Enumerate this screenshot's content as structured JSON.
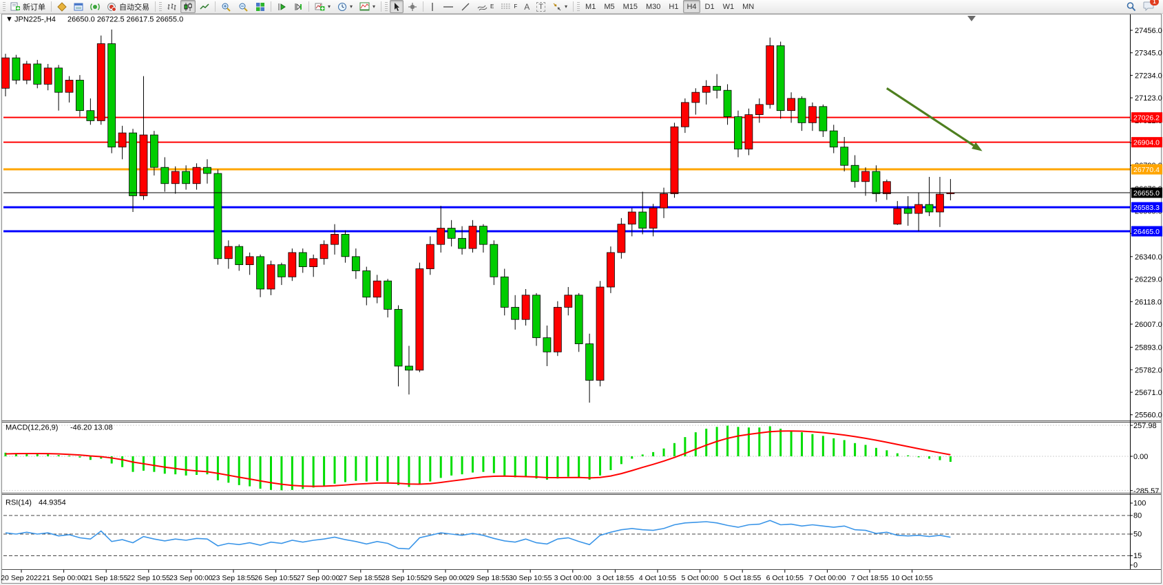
{
  "toolbar": {
    "new_order_label": "新订单",
    "autotrading_label": "自动交易",
    "text_tool_label": "A",
    "text_label_tool_label": "T",
    "channel_sub": "E",
    "fibo_sub": "F",
    "timeframes": [
      "M1",
      "M5",
      "M15",
      "M30",
      "H1",
      "H4",
      "D1",
      "W1",
      "MN"
    ],
    "active_timeframe": "H4",
    "notification_count": "1"
  },
  "chart": {
    "title_display": "JPN225-,H4",
    "symbol": "JPN225-",
    "period": "H4",
    "ohlc_display": "26650.0 26722.5 26617.5 26655.0",
    "open": "26650.0",
    "high": "26722.5",
    "low": "26617.5",
    "close": "26655.0"
  },
  "chart_data": [
    {
      "type": "candlestick",
      "title": "JPN225-,H4",
      "up_color": "#ff0000",
      "down_color": "#00cc00",
      "ylim": [
        25528,
        27490
      ],
      "y_tick_labels": [
        "27456.0",
        "27345.0",
        "27234.0",
        "27123.0",
        "27012.0",
        "26901.0",
        "26790.0",
        "26676.0",
        "26565.0",
        "26454.0",
        "26340.0",
        "26229.0",
        "26118.0",
        "26007.0",
        "25893.0",
        "25782.0",
        "25671.0",
        "25560.0"
      ],
      "x_labels": [
        "20 Sep 2022",
        "21 Sep 00:00",
        "21 Sep 18:55",
        "22 Sep 10:55",
        "23 Sep 00:00",
        "23 Sep 18:55",
        "26 Sep 10:55",
        "27 Sep 00:00",
        "27 Sep 18:55",
        "28 Sep 10:55",
        "29 Sep 00:00",
        "29 Sep 18:55",
        "30 Sep 10:55",
        "3 Oct 00:00",
        "3 Oct 18:55",
        "4 Oct 10:55",
        "5 Oct 00:00",
        "5 Oct 18:55",
        "6 Oct 10:55",
        "7 Oct 00:00",
        "7 Oct 18:55",
        "10 Oct 10:55"
      ],
      "candles_ohlc": [
        [
          27170,
          27340,
          27130,
          27320
        ],
        [
          27320,
          27335,
          27190,
          27210
        ],
        [
          27210,
          27305,
          27190,
          27290
        ],
        [
          27290,
          27310,
          27170,
          27190
        ],
        [
          27190,
          27290,
          27160,
          27270
        ],
        [
          27270,
          27285,
          27060,
          27150
        ],
        [
          27150,
          27230,
          27100,
          27210
        ],
        [
          27210,
          27235,
          27030,
          27060
        ],
        [
          27060,
          27120,
          26990,
          27010
        ],
        [
          27010,
          27430,
          26990,
          27390
        ],
        [
          27390,
          27460,
          26850,
          26880
        ],
        [
          26880,
          26985,
          26820,
          26950
        ],
        [
          26950,
          26970,
          26560,
          26640
        ],
        [
          26640,
          27230,
          26620,
          26940
        ],
        [
          26940,
          26960,
          26740,
          26780
        ],
        [
          26780,
          26830,
          26660,
          26700
        ],
        [
          26700,
          26785,
          26650,
          26760
        ],
        [
          26760,
          26790,
          26670,
          26700
        ],
        [
          26700,
          26800,
          26670,
          26780
        ],
        [
          26780,
          26820,
          26700,
          26750
        ],
        [
          26750,
          26770,
          26300,
          26330
        ],
        [
          26330,
          26420,
          26280,
          26390
        ],
        [
          26390,
          26400,
          26270,
          26300
        ],
        [
          26300,
          26360,
          26250,
          26340
        ],
        [
          26340,
          26350,
          26140,
          26180
        ],
        [
          26180,
          26320,
          26150,
          26300
        ],
        [
          26300,
          26310,
          26200,
          26240
        ],
        [
          26240,
          26380,
          26220,
          26360
        ],
        [
          26360,
          26380,
          26260,
          26290
        ],
        [
          26290,
          26350,
          26240,
          26330
        ],
        [
          26330,
          26420,
          26300,
          26400
        ],
        [
          26400,
          26500,
          26350,
          26450
        ],
        [
          26450,
          26470,
          26310,
          26340
        ],
        [
          26340,
          26380,
          26230,
          26270
        ],
        [
          26270,
          26290,
          26100,
          26140
        ],
        [
          26140,
          26250,
          26110,
          26220
        ],
        [
          26220,
          26230,
          26040,
          26080
        ],
        [
          26080,
          26100,
          25700,
          25800
        ],
        [
          25800,
          25900,
          25660,
          25780
        ],
        [
          25780,
          26310,
          25770,
          26280
        ],
        [
          26280,
          26440,
          26250,
          26400
        ],
        [
          26400,
          26590,
          26360,
          26480
        ],
        [
          26480,
          26520,
          26390,
          26430
        ],
        [
          26430,
          26490,
          26350,
          26380
        ],
        [
          26380,
          26520,
          26360,
          26490
        ],
        [
          26490,
          26500,
          26360,
          26400
        ],
        [
          26400,
          26420,
          26200,
          26240
        ],
        [
          26240,
          26280,
          26050,
          26090
        ],
        [
          26090,
          26150,
          25980,
          26030
        ],
        [
          26030,
          26180,
          26000,
          26150
        ],
        [
          26150,
          26160,
          25900,
          25940
        ],
        [
          25940,
          26000,
          25800,
          25870
        ],
        [
          25870,
          26120,
          25850,
          26090
        ],
        [
          26090,
          26190,
          26050,
          26150
        ],
        [
          26150,
          26160,
          25870,
          25910
        ],
        [
          25910,
          25960,
          25620,
          25730
        ],
        [
          25730,
          26220,
          25700,
          26190
        ],
        [
          26190,
          26390,
          26160,
          26360
        ],
        [
          26360,
          26530,
          26330,
          26500
        ],
        [
          26500,
          26580,
          26440,
          26560
        ],
        [
          26560,
          26660,
          26450,
          26480
        ],
        [
          26480,
          26600,
          26440,
          26580
        ],
        [
          26580,
          26680,
          26530,
          26650
        ],
        [
          26650,
          27000,
          26630,
          26980
        ],
        [
          26980,
          27120,
          26950,
          27100
        ],
        [
          27100,
          27170,
          27040,
          27150
        ],
        [
          27150,
          27210,
          27090,
          27180
        ],
        [
          27180,
          27240,
          27120,
          27160
        ],
        [
          27160,
          27190,
          26990,
          27030
        ],
        [
          27030,
          27060,
          26830,
          26870
        ],
        [
          26870,
          27070,
          26840,
          27040
        ],
        [
          27040,
          27120,
          27000,
          27090
        ],
        [
          27090,
          27420,
          27070,
          27380
        ],
        [
          27380,
          27400,
          27020,
          27060
        ],
        [
          27060,
          27150,
          27000,
          27120
        ],
        [
          27120,
          27130,
          26960,
          27000
        ],
        [
          27000,
          27100,
          26960,
          27080
        ],
        [
          27080,
          27090,
          26930,
          26960
        ],
        [
          26960,
          26990,
          26850,
          26880
        ],
        [
          26880,
          26930,
          26760,
          26790
        ],
        [
          26790,
          26840,
          26680,
          26710
        ],
        [
          26710,
          26780,
          26640,
          26760
        ],
        [
          26760,
          26790,
          26610,
          26650
        ],
        [
          26650,
          26720,
          26620,
          26710
        ],
        [
          26500,
          26614,
          26496,
          26577
        ],
        [
          26577,
          26638,
          26492,
          26553
        ],
        [
          26553,
          26655,
          26465,
          26597
        ],
        [
          26597,
          26733,
          26540,
          26560
        ],
        [
          26560,
          26733,
          26486,
          26648
        ],
        [
          26650,
          26722.5,
          26617.5,
          26655
        ]
      ],
      "hlines": [
        {
          "price": 27026.2,
          "label": "27026.2",
          "color": "#ff0000",
          "width": 2,
          "kind": "resistance"
        },
        {
          "price": 26904.0,
          "label": "26904.0",
          "color": "#ff0000",
          "width": 2,
          "kind": "resistance"
        },
        {
          "price": 26770.4,
          "label": "26770.4",
          "color": "#ffa500",
          "width": 3,
          "kind": "pivot"
        },
        {
          "price": 26655.0,
          "label": "26655.0",
          "color": "#000000",
          "width": 1,
          "kind": "current-price"
        },
        {
          "price": 26583.3,
          "label": "26583.3",
          "color": "#0000ff",
          "width": 3,
          "kind": "support"
        },
        {
          "price": 26465.0,
          "label": "26465.0",
          "color": "#0000ff",
          "width": 3,
          "kind": "support"
        }
      ],
      "annotation_arrow": {
        "from": {
          "bar": 83,
          "price": 27170
        },
        "to": {
          "bar": 92,
          "price": 26860
        },
        "color": "#4e7f1f",
        "direction": "down"
      }
    },
    {
      "type": "bar",
      "indicator": "MACD",
      "label": "MACD(12,26,9)",
      "values_display": "-46.20 13.08",
      "main_value": -46.2,
      "signal_value": 13.08,
      "y_tick_labels": [
        "257.98",
        "0.00",
        "-285.57"
      ],
      "ylim": [
        -300,
        272
      ],
      "histogram_color": "#00dd00",
      "signal_color": "#ff0000",
      "histogram": [
        30,
        25,
        28,
        20,
        22,
        10,
        5,
        -10,
        -30,
        -20,
        -60,
        -90,
        -130,
        -120,
        -130,
        -145,
        -150,
        -160,
        -155,
        -150,
        -200,
        -220,
        -240,
        -250,
        -270,
        -280,
        -283,
        -280,
        -272,
        -260,
        -245,
        -228,
        -215,
        -205,
        -210,
        -205,
        -215,
        -240,
        -255,
        -235,
        -210,
        -180,
        -160,
        -150,
        -135,
        -130,
        -140,
        -160,
        -175,
        -175,
        -185,
        -195,
        -185,
        -170,
        -175,
        -195,
        -160,
        -115,
        -65,
        -20,
        15,
        35,
        65,
        110,
        160,
        200,
        230,
        245,
        255,
        245,
        240,
        240,
        250,
        230,
        215,
        200,
        185,
        170,
        150,
        135,
        110,
        95,
        70,
        50,
        25,
        8,
        -8,
        -20,
        -32,
        -46.2
      ],
      "signal": [
        20,
        22,
        23,
        23,
        22,
        20,
        16,
        11,
        3,
        -3,
        -14,
        -28,
        -48,
        -62,
        -76,
        -90,
        -102,
        -113,
        -122,
        -128,
        -142,
        -158,
        -174,
        -189,
        -205,
        -220,
        -233,
        -242,
        -248,
        -250,
        -249,
        -245,
        -239,
        -232,
        -228,
        -223,
        -222,
        -225,
        -231,
        -232,
        -228,
        -218,
        -206,
        -195,
        -183,
        -172,
        -166,
        -165,
        -167,
        -169,
        -172,
        -177,
        -178,
        -177,
        -176,
        -180,
        -176,
        -164,
        -144,
        -119,
        -92,
        -67,
        -40,
        -10,
        24,
        59,
        93,
        124,
        150,
        169,
        183,
        194,
        205,
        210,
        211,
        209,
        204,
        197,
        188,
        177,
        164,
        150,
        134,
        117,
        99,
        81,
        63,
        46,
        29,
        13.08
      ]
    },
    {
      "type": "line",
      "indicator": "RSI",
      "label": "RSI(14)",
      "value_display": "44.9354",
      "current_value": 44.9354,
      "line_color": "#3a95e8",
      "levels": [
        80,
        50,
        15
      ],
      "y_tick_labels": [
        "100",
        "80",
        "50",
        "15",
        "0"
      ],
      "ylim": [
        0,
        100
      ],
      "values": [
        52,
        50,
        53,
        50,
        52,
        47,
        49,
        44,
        42,
        55,
        38,
        41,
        36,
        46,
        42,
        39,
        42,
        40,
        43,
        42,
        31,
        35,
        33,
        36,
        32,
        37,
        35,
        40,
        37,
        40,
        42,
        45,
        41,
        38,
        34,
        38,
        35,
        27,
        26,
        44,
        48,
        52,
        50,
        48,
        51,
        48,
        43,
        39,
        37,
        42,
        36,
        34,
        42,
        44,
        38,
        33,
        48,
        53,
        57,
        59,
        57,
        56,
        59,
        65,
        68,
        69,
        70,
        68,
        64,
        61,
        65,
        66,
        72,
        65,
        66,
        63,
        65,
        63,
        61,
        63,
        57,
        56,
        51,
        53,
        48,
        47,
        48,
        46,
        48,
        44.94
      ]
    }
  ]
}
